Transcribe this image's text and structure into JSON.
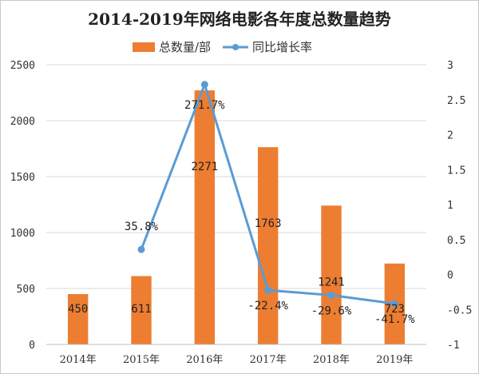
{
  "chart_data": {
    "type": "bar+line",
    "title": "2014-2019年网络电影各年度总数量趋势",
    "categories": [
      "2014年",
      "2015年",
      "2016年",
      "2017年",
      "2018年",
      "2019年"
    ],
    "series": [
      {
        "name": "总数量/部",
        "type": "bar",
        "axis": "left",
        "color": "#ed7d31",
        "values": [
          450,
          611,
          2271,
          1763,
          1241,
          723
        ],
        "labels": [
          "450",
          "611",
          "2271",
          "1763",
          "1241",
          "723"
        ]
      },
      {
        "name": "同比增长率",
        "type": "line",
        "axis": "right",
        "color": "#5b9bd5",
        "values": [
          null,
          0.358,
          2.717,
          -0.224,
          -0.296,
          -0.417
        ],
        "labels": [
          "",
          "35.8%",
          "271.7%",
          "-22.4%",
          "-29.6%",
          "-41.7%"
        ]
      }
    ],
    "y_left": {
      "min": 0,
      "max": 2500,
      "ticks": [
        "0",
        "500",
        "1000",
        "1500",
        "2000",
        "2500"
      ]
    },
    "y_right": {
      "min": -1,
      "max": 3,
      "ticks": [
        "-1",
        "-0.5",
        "0",
        "0.5",
        "1",
        "1.5",
        "2",
        "2.5",
        "3"
      ]
    },
    "grid": true,
    "legend_position": "top"
  }
}
